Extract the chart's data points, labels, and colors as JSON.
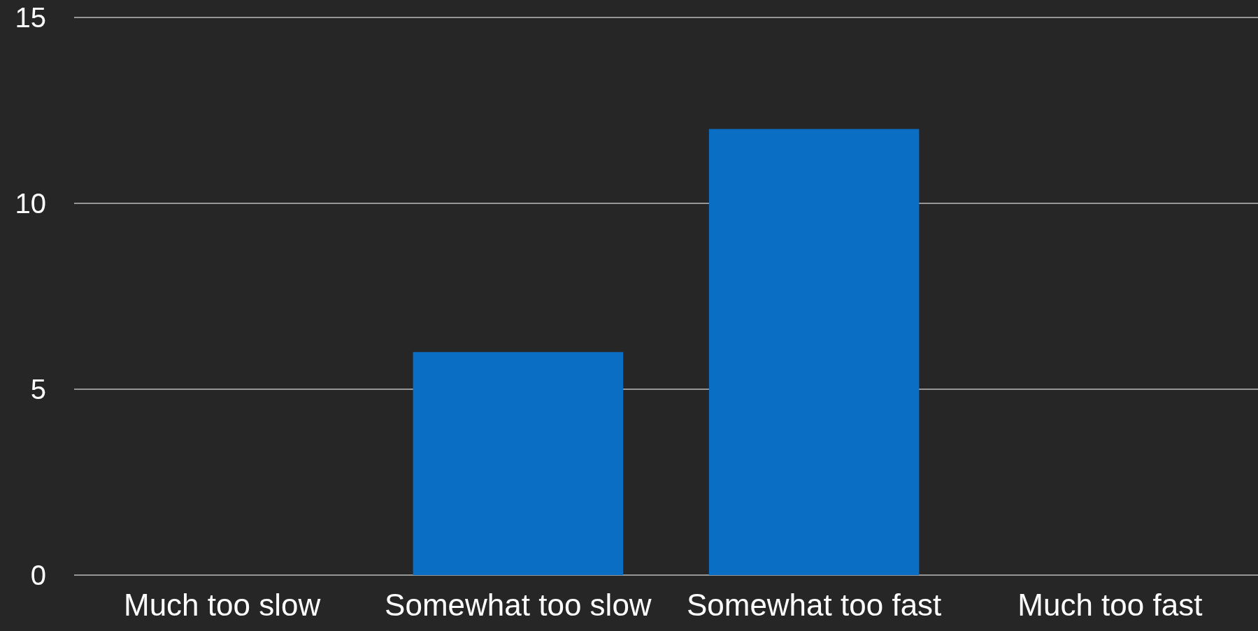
{
  "chart_data": {
    "type": "bar",
    "categories": [
      "Much too slow",
      "Somewhat too slow",
      "Somewhat too fast",
      "Much too fast"
    ],
    "values": [
      0,
      6,
      12,
      0
    ],
    "color": "#0a6ec4",
    "ylim": [
      0,
      15
    ],
    "yticks": [
      0,
      5,
      10,
      15
    ],
    "grid": "y"
  }
}
